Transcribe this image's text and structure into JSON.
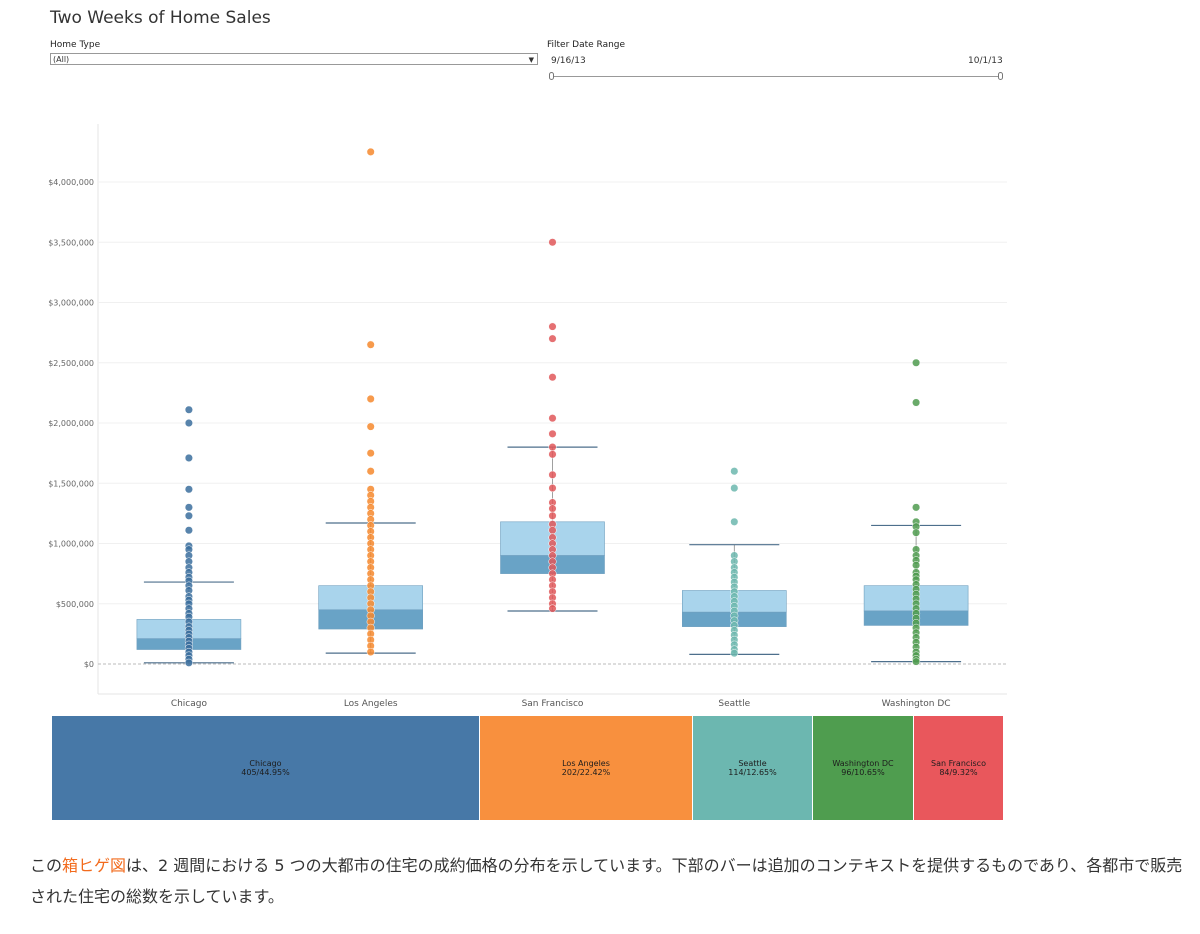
{
  "dashboard": {
    "title": "Two Weeks of Home Sales",
    "home_type_label": "Home Type",
    "home_type_value": "(All)",
    "date_filter_label": "Filter Date Range",
    "date_start": "9/16/13",
    "date_end": "10/1/13"
  },
  "chart_data": [
    {
      "type": "box",
      "categories": [
        "Chicago",
        "Los Angeles",
        "San Francisco",
        "Seattle",
        "Washington DC"
      ],
      "ylabel": "",
      "ylim": [
        -200000,
        4500000
      ],
      "yticks": [
        0,
        500000,
        1000000,
        1500000,
        2000000,
        2500000,
        3000000,
        3500000,
        4000000
      ],
      "ytick_labels": [
        "$0",
        "$500,000",
        "$1,000,000",
        "$1,500,000",
        "$2,000,000",
        "$2,500,000",
        "$3,000,000",
        "$3,500,000",
        "$4,000,000"
      ],
      "grid": true,
      "series": [
        {
          "category": "Chicago",
          "color": "#3b6f9e",
          "whisker_low": 10000,
          "q1": 120000,
          "median": 210000,
          "q3": 370000,
          "whisker_high": 680000,
          "points": [
            2110000,
            2000000,
            1710000,
            1450000,
            1300000,
            1230000,
            1110000,
            980000,
            950000,
            900000,
            850000,
            800000,
            760000,
            720000,
            690000,
            650000,
            610000,
            560000,
            530000,
            500000,
            460000,
            420000,
            390000,
            350000,
            310000,
            280000,
            250000,
            220000,
            190000,
            160000,
            130000,
            100000,
            70000,
            40000,
            10000
          ]
        },
        {
          "category": "Los Angeles",
          "color": "#f6882d",
          "whisker_low": 90000,
          "q1": 290000,
          "median": 450000,
          "q3": 650000,
          "whisker_high": 1170000,
          "points": [
            4250000,
            2650000,
            2200000,
            1970000,
            1750000,
            1600000,
            1450000,
            1400000,
            1350000,
            1300000,
            1250000,
            1200000,
            1150000,
            1100000,
            1050000,
            1000000,
            950000,
            900000,
            850000,
            800000,
            750000,
            700000,
            650000,
            600000,
            550000,
            500000,
            450000,
            400000,
            350000,
            300000,
            250000,
            200000,
            150000,
            100000
          ]
        },
        {
          "category": "San Francisco",
          "color": "#e05759",
          "whisker_low": 440000,
          "q1": 750000,
          "median": 900000,
          "q3": 1180000,
          "whisker_high": 1800000,
          "points": [
            3500000,
            2800000,
            2700000,
            2380000,
            2040000,
            1910000,
            1800000,
            1740000,
            1570000,
            1460000,
            1340000,
            1290000,
            1230000,
            1160000,
            1110000,
            1050000,
            1000000,
            950000,
            900000,
            850000,
            800000,
            750000,
            700000,
            650000,
            600000,
            550000,
            500000,
            460000
          ]
        },
        {
          "category": "Seattle",
          "color": "#6cb7ae",
          "whisker_low": 80000,
          "q1": 310000,
          "median": 430000,
          "q3": 610000,
          "whisker_high": 990000,
          "points": [
            1600000,
            1460000,
            1180000,
            900000,
            850000,
            800000,
            760000,
            720000,
            680000,
            640000,
            600000,
            560000,
            520000,
            480000,
            440000,
            400000,
            360000,
            320000,
            280000,
            240000,
            200000,
            160000,
            120000,
            90000
          ]
        },
        {
          "category": "Washington DC",
          "color": "#4f9b4f",
          "whisker_low": 20000,
          "q1": 320000,
          "median": 440000,
          "q3": 650000,
          "whisker_high": 1150000,
          "points": [
            2500000,
            2170000,
            1300000,
            1180000,
            1140000,
            1090000,
            950000,
            900000,
            860000,
            820000,
            760000,
            730000,
            700000,
            660000,
            620000,
            580000,
            540000,
            500000,
            460000,
            420000,
            380000,
            340000,
            300000,
            260000,
            220000,
            180000,
            140000,
            100000,
            70000,
            40000,
            20000
          ]
        }
      ]
    },
    {
      "type": "treemap",
      "items": [
        {
          "name": "Chicago",
          "count": 405,
          "percent": 44.95,
          "label": "405/44.95%",
          "color": "#4778a7"
        },
        {
          "name": "Los Angeles",
          "count": 202,
          "percent": 22.42,
          "label": "202/22.42%",
          "color": "#f8903e"
        },
        {
          "name": "Seattle",
          "count": 114,
          "percent": 12.65,
          "label": "114/12.65%",
          "color": "#6cb7b0"
        },
        {
          "name": "Washington DC",
          "count": 96,
          "percent": 10.65,
          "label": "96/10.65%",
          "color": "#4f9d4f"
        },
        {
          "name": "San Francisco",
          "count": 84,
          "percent": 9.32,
          "label": "84/9.32%",
          "color": "#e9575c"
        }
      ]
    }
  ],
  "caption": {
    "before": "この",
    "link": "箱ヒゲ図",
    "after": "は、2 週間における 5 つの大都市の住宅の成約価格の分布を示しています。下部のバーは追加のコンテキストを提供するものであり、各都市で販売された住宅の総数を示しています。"
  }
}
